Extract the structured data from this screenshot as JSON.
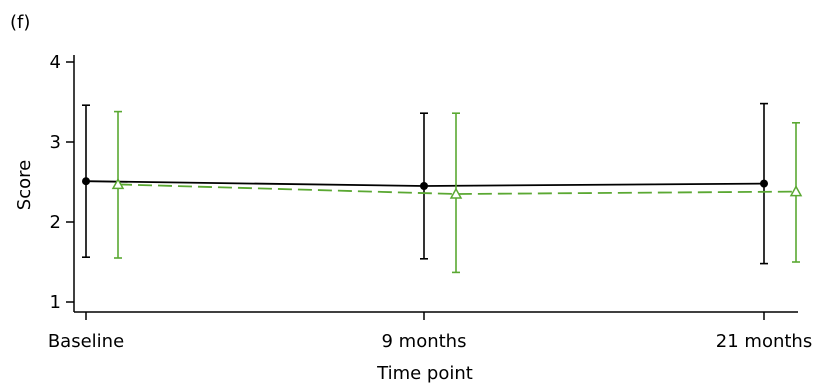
{
  "panel_label": "(f)",
  "chart_data": {
    "type": "line",
    "xlabel": "Time point",
    "ylabel": "Score",
    "categories": [
      "Baseline",
      "9 months",
      "21 months"
    ],
    "ylim": [
      1,
      4
    ],
    "yticks": [
      1,
      2,
      3,
      4
    ],
    "grid": false,
    "legend": "none",
    "series": [
      {
        "color": "#000000",
        "line_style": "solid",
        "marker": "filled-circle",
        "values": [
          2.51,
          2.45,
          2.48
        ],
        "error_low": [
          1.56,
          1.54,
          1.48
        ],
        "error_high": [
          3.46,
          3.36,
          3.48
        ]
      },
      {
        "color": "#5aa832",
        "line_style": "dashed",
        "marker": "open-triangle",
        "values": [
          2.47,
          2.35,
          2.38
        ],
        "error_low": [
          1.55,
          1.37,
          1.5
        ],
        "error_high": [
          3.38,
          3.36,
          3.24
        ]
      }
    ]
  }
}
